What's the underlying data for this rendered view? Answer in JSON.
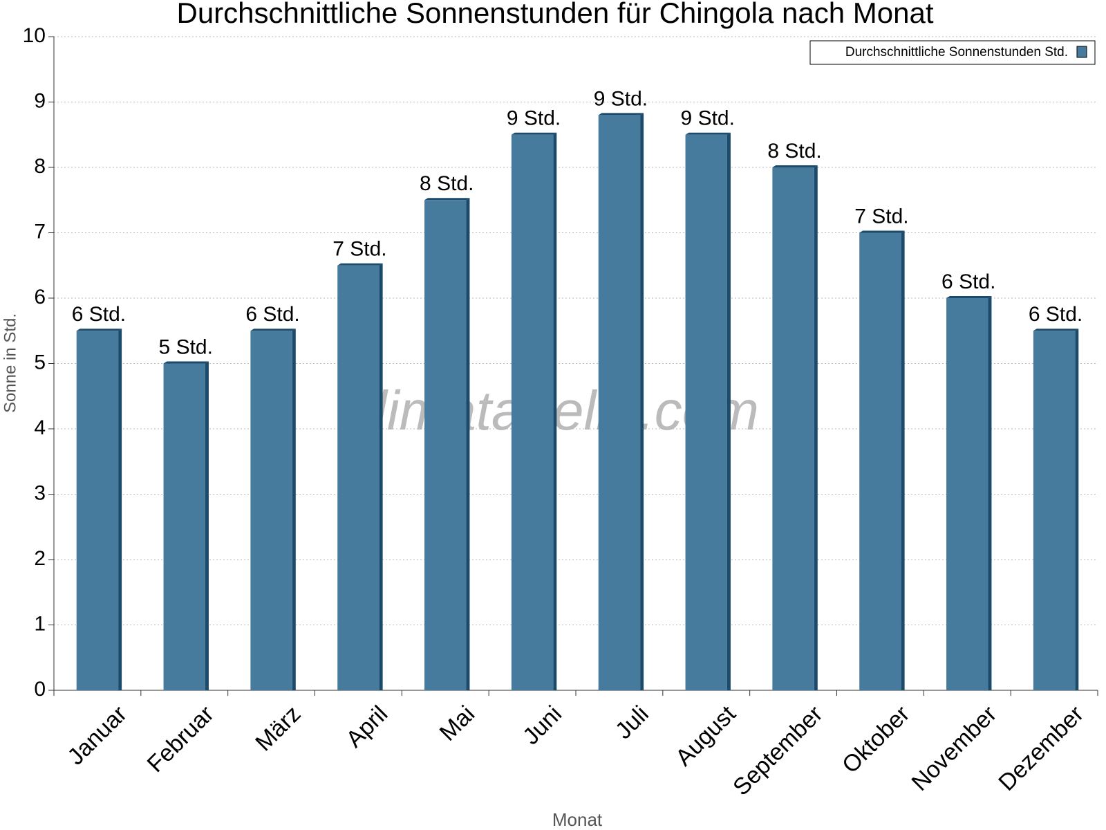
{
  "chart_data": {
    "type": "bar",
    "title": "Durchschnittliche Sonnenstunden für Chingola nach Monat",
    "x_label": "Monat",
    "y_label": "Sonne in Std.",
    "watermark": "klimatabelle.com",
    "categories": [
      "Januar",
      "Februar",
      "März",
      "April",
      "Mai",
      "Juni",
      "Juli",
      "August",
      "September",
      "Oktober",
      "November",
      "Dezember"
    ],
    "series": [
      {
        "name": "Durchschnittliche Sonnenstunden Std.",
        "color": "#467b9e",
        "values": [
          5.5,
          5.0,
          5.5,
          6.5,
          7.5,
          8.5,
          8.8,
          8.5,
          8.0,
          7.0,
          6.0,
          5.5
        ],
        "value_labels": [
          "6 Std.",
          "5 Std.",
          "6 Std.",
          "7 Std.",
          "8 Std.",
          "9 Std.",
          "9 Std.",
          "9 Std.",
          "8 Std.",
          "7 Std.",
          "6 Std.",
          "6 Std."
        ]
      }
    ],
    "ylim": [
      0,
      10
    ],
    "yticks": [
      0,
      1,
      2,
      3,
      4,
      5,
      6,
      7,
      8,
      9,
      10
    ],
    "grid": true,
    "legend": "top-right"
  }
}
